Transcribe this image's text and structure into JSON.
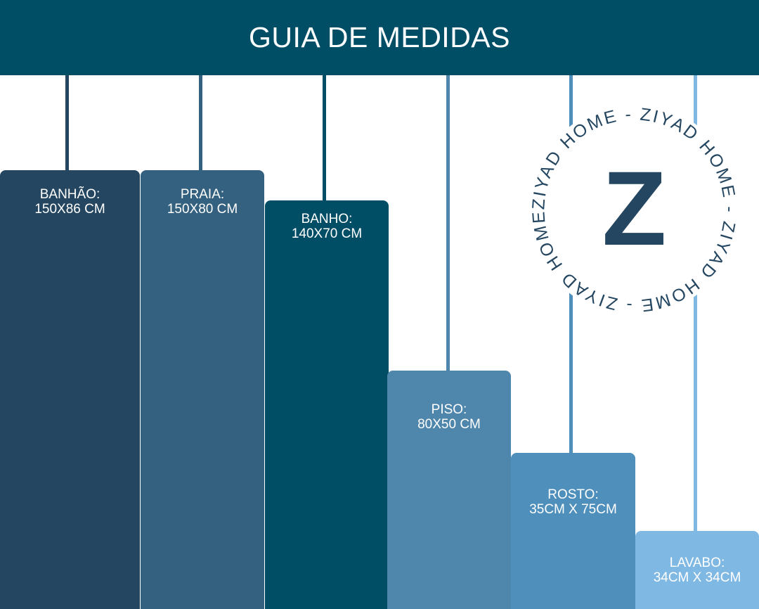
{
  "title": "GUIA DE MEDIDAS",
  "towels": [
    {
      "name": "BANHÃO:",
      "size": "150X86 CM",
      "color": "#244660",
      "rod_color": "#244660"
    },
    {
      "name": "PRAIA:",
      "size": "150X80 CM",
      "color": "#34617f",
      "rod_color": "#34617f"
    },
    {
      "name": "BANHO:",
      "size": "140X70 CM",
      "color": "#004d66",
      "rod_color": "#004d66"
    },
    {
      "name": "PISO:",
      "size": "80X50 CM",
      "color": "#4f86ab",
      "rod_color": "#4f86ab"
    },
    {
      "name": "ROSTO:",
      "size": "35CM X 75CM",
      "color": "#4e8fbc",
      "rod_color": "#4e8fbc"
    },
    {
      "name": "LAVABO:",
      "size": "34CM X 34CM",
      "color": "#7fb8e3",
      "rod_color": "#7fb8e3"
    }
  ],
  "logo": {
    "letter": "Z",
    "ring_text": "ZIYAD HOME - ZIYAD HOME - ZIYAD HOME - ZIYAD HOME -",
    "color": "#244660"
  }
}
